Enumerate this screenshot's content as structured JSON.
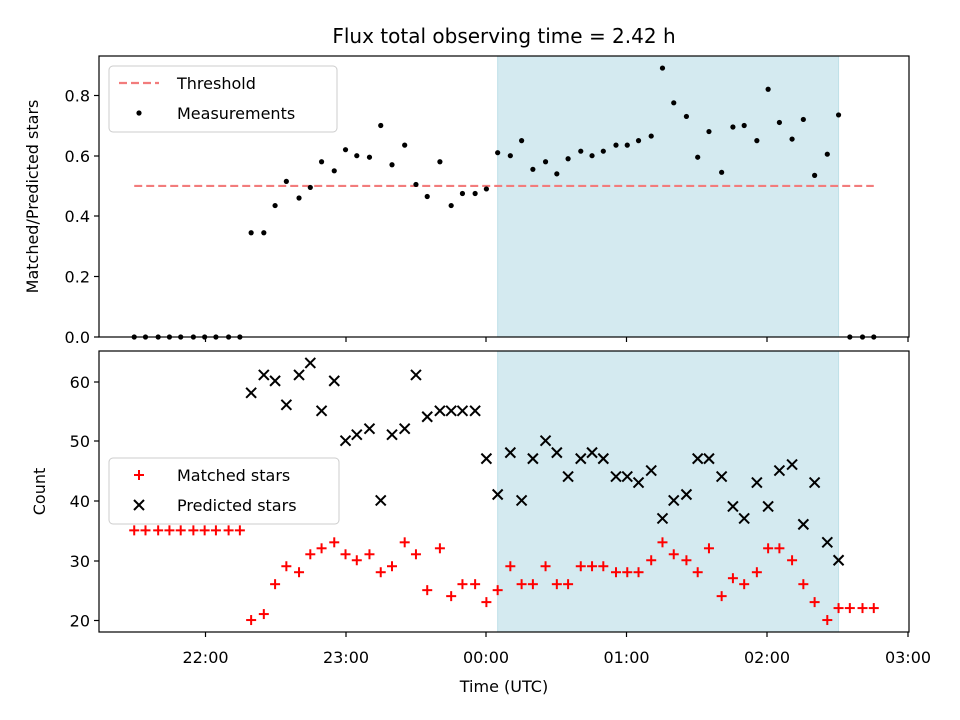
{
  "figure": {
    "title": "Flux total observing time = 2.42 h",
    "xlabel": "Time (UTC)",
    "x_tick_labels": [
      "22:00",
      "23:00",
      "00:00",
      "01:00",
      "02:00",
      "03:00"
    ]
  },
  "chart_data": [
    {
      "type": "scatter",
      "ylabel": "Matched/Predicted stars",
      "ylim": [
        0,
        0.93
      ],
      "y_ticks": [
        "0.0",
        "0.2",
        "0.4",
        "0.6",
        "0.8"
      ],
      "xlim_hours": [
        -2.75,
        3.0
      ],
      "highlight_span_hours": [
        0.08,
        2.5
      ],
      "highlight_color": "#d4eaf0",
      "legend_position": "upper left",
      "threshold": {
        "name": "Threshold",
        "value": 0.5,
        "x_range_hours": [
          -2.5,
          2.75
        ],
        "color": "#f27c7c",
        "style": "dashed"
      },
      "series": [
        {
          "name": "Measurements",
          "color": "#000000",
          "x_hours": [
            -2.5,
            -2.42,
            -2.33,
            -2.25,
            -2.17,
            -2.08,
            -2.0,
            -1.92,
            -1.83,
            -1.75,
            -1.67,
            -1.58,
            -1.5,
            -1.42,
            -1.33,
            -1.25,
            -1.17,
            -1.08,
            -1.0,
            -0.92,
            -0.83,
            -0.75,
            -0.67,
            -0.58,
            -0.5,
            -0.42,
            -0.33,
            -0.25,
            -0.17,
            -0.08,
            0.0,
            0.08,
            0.17,
            0.25,
            0.33,
            0.42,
            0.5,
            0.58,
            0.67,
            0.75,
            0.83,
            0.92,
            1.0,
            1.08,
            1.17,
            1.25,
            1.33,
            1.42,
            1.5,
            1.58,
            1.67,
            1.75,
            1.83,
            1.92,
            2.0,
            2.08,
            2.17,
            2.25,
            2.33,
            2.42,
            2.5,
            2.58,
            2.67,
            2.75
          ],
          "values": [
            0,
            0,
            0,
            0,
            0,
            0,
            0,
            0,
            0,
            0,
            0.345,
            0.345,
            0.435,
            0.515,
            0.46,
            0.495,
            0.58,
            0.55,
            0.62,
            0.6,
            0.595,
            0.7,
            0.57,
            0.635,
            0.505,
            0.465,
            0.58,
            0.435,
            0.475,
            0.475,
            0.49,
            0.61,
            0.6,
            0.65,
            0.555,
            0.58,
            0.54,
            0.59,
            0.615,
            0.6,
            0.615,
            0.635,
            0.635,
            0.65,
            0.665,
            0.89,
            0.775,
            0.73,
            0.595,
            0.68,
            0.545,
            0.695,
            0.7,
            0.65,
            0.82,
            0.71,
            0.655,
            0.72,
            0.535,
            0.605,
            0.735,
            0,
            0,
            0
          ]
        }
      ]
    },
    {
      "type": "scatter",
      "ylabel": "Count",
      "ylim": [
        18,
        65
      ],
      "y_ticks": [
        "20",
        "30",
        "40",
        "50",
        "60"
      ],
      "xlim_hours": [
        -2.75,
        3.0
      ],
      "highlight_span_hours": [
        0.08,
        2.5
      ],
      "highlight_color": "#d4eaf0",
      "legend_position": "center left",
      "series": [
        {
          "name": "Matched stars",
          "marker": "plus",
          "color": "#ff0000",
          "x_hours": [
            -2.5,
            -2.42,
            -2.33,
            -2.25,
            -2.17,
            -2.08,
            -2.0,
            -1.92,
            -1.83,
            -1.75,
            -1.67,
            -1.58,
            -1.5,
            -1.42,
            -1.33,
            -1.25,
            -1.17,
            -1.08,
            -1.0,
            -0.92,
            -0.83,
            -0.75,
            -0.67,
            -0.58,
            -0.5,
            -0.42,
            -0.33,
            -0.25,
            -0.17,
            -0.08,
            0.0,
            0.08,
            0.17,
            0.25,
            0.33,
            0.42,
            0.5,
            0.58,
            0.67,
            0.75,
            0.83,
            0.92,
            1.0,
            1.08,
            1.17,
            1.25,
            1.33,
            1.42,
            1.5,
            1.58,
            1.67,
            1.75,
            1.83,
            1.92,
            2.0,
            2.08,
            2.17,
            2.25,
            2.33,
            2.42,
            2.5,
            2.58,
            2.67,
            2.75
          ],
          "values": [
            35,
            35,
            35,
            35,
            35,
            35,
            35,
            35,
            35,
            35,
            20,
            21,
            26,
            29,
            28,
            31,
            32,
            33,
            31,
            30,
            31,
            28,
            29,
            33,
            31,
            25,
            32,
            24,
            26,
            26,
            23,
            25,
            29,
            26,
            26,
            29,
            26,
            26,
            29,
            29,
            29,
            28,
            28,
            28,
            30,
            33,
            31,
            30,
            28,
            32,
            24,
            27,
            26,
            28,
            32,
            32,
            30,
            26,
            23,
            20,
            22,
            22,
            22,
            22
          ]
        },
        {
          "name": "Predicted stars",
          "marker": "x",
          "color": "#000000",
          "x_hours": [
            -1.67,
            -1.58,
            -1.5,
            -1.42,
            -1.33,
            -1.25,
            -1.17,
            -1.08,
            -1.0,
            -0.92,
            -0.83,
            -0.75,
            -0.67,
            -0.58,
            -0.5,
            -0.42,
            -0.33,
            -0.25,
            -0.17,
            -0.08,
            0.0,
            0.08,
            0.17,
            0.25,
            0.33,
            0.42,
            0.5,
            0.58,
            0.67,
            0.75,
            0.83,
            0.92,
            1.0,
            1.08,
            1.17,
            1.25,
            1.33,
            1.42,
            1.5,
            1.58,
            1.67,
            1.75,
            1.83,
            1.92,
            2.0,
            2.08,
            2.17,
            2.25,
            2.33,
            2.42,
            2.5
          ],
          "values": [
            58,
            61,
            60,
            56,
            61,
            63,
            55,
            60,
            50,
            51,
            52,
            40,
            51,
            52,
            61,
            54,
            55,
            55,
            55,
            55,
            47,
            41,
            48,
            40,
            47,
            50,
            48,
            44,
            47,
            48,
            47,
            44,
            44,
            43,
            45,
            37,
            40,
            41,
            47,
            47,
            44,
            39,
            37,
            43,
            39,
            45,
            46,
            36,
            43,
            33,
            30
          ]
        }
      ]
    }
  ]
}
